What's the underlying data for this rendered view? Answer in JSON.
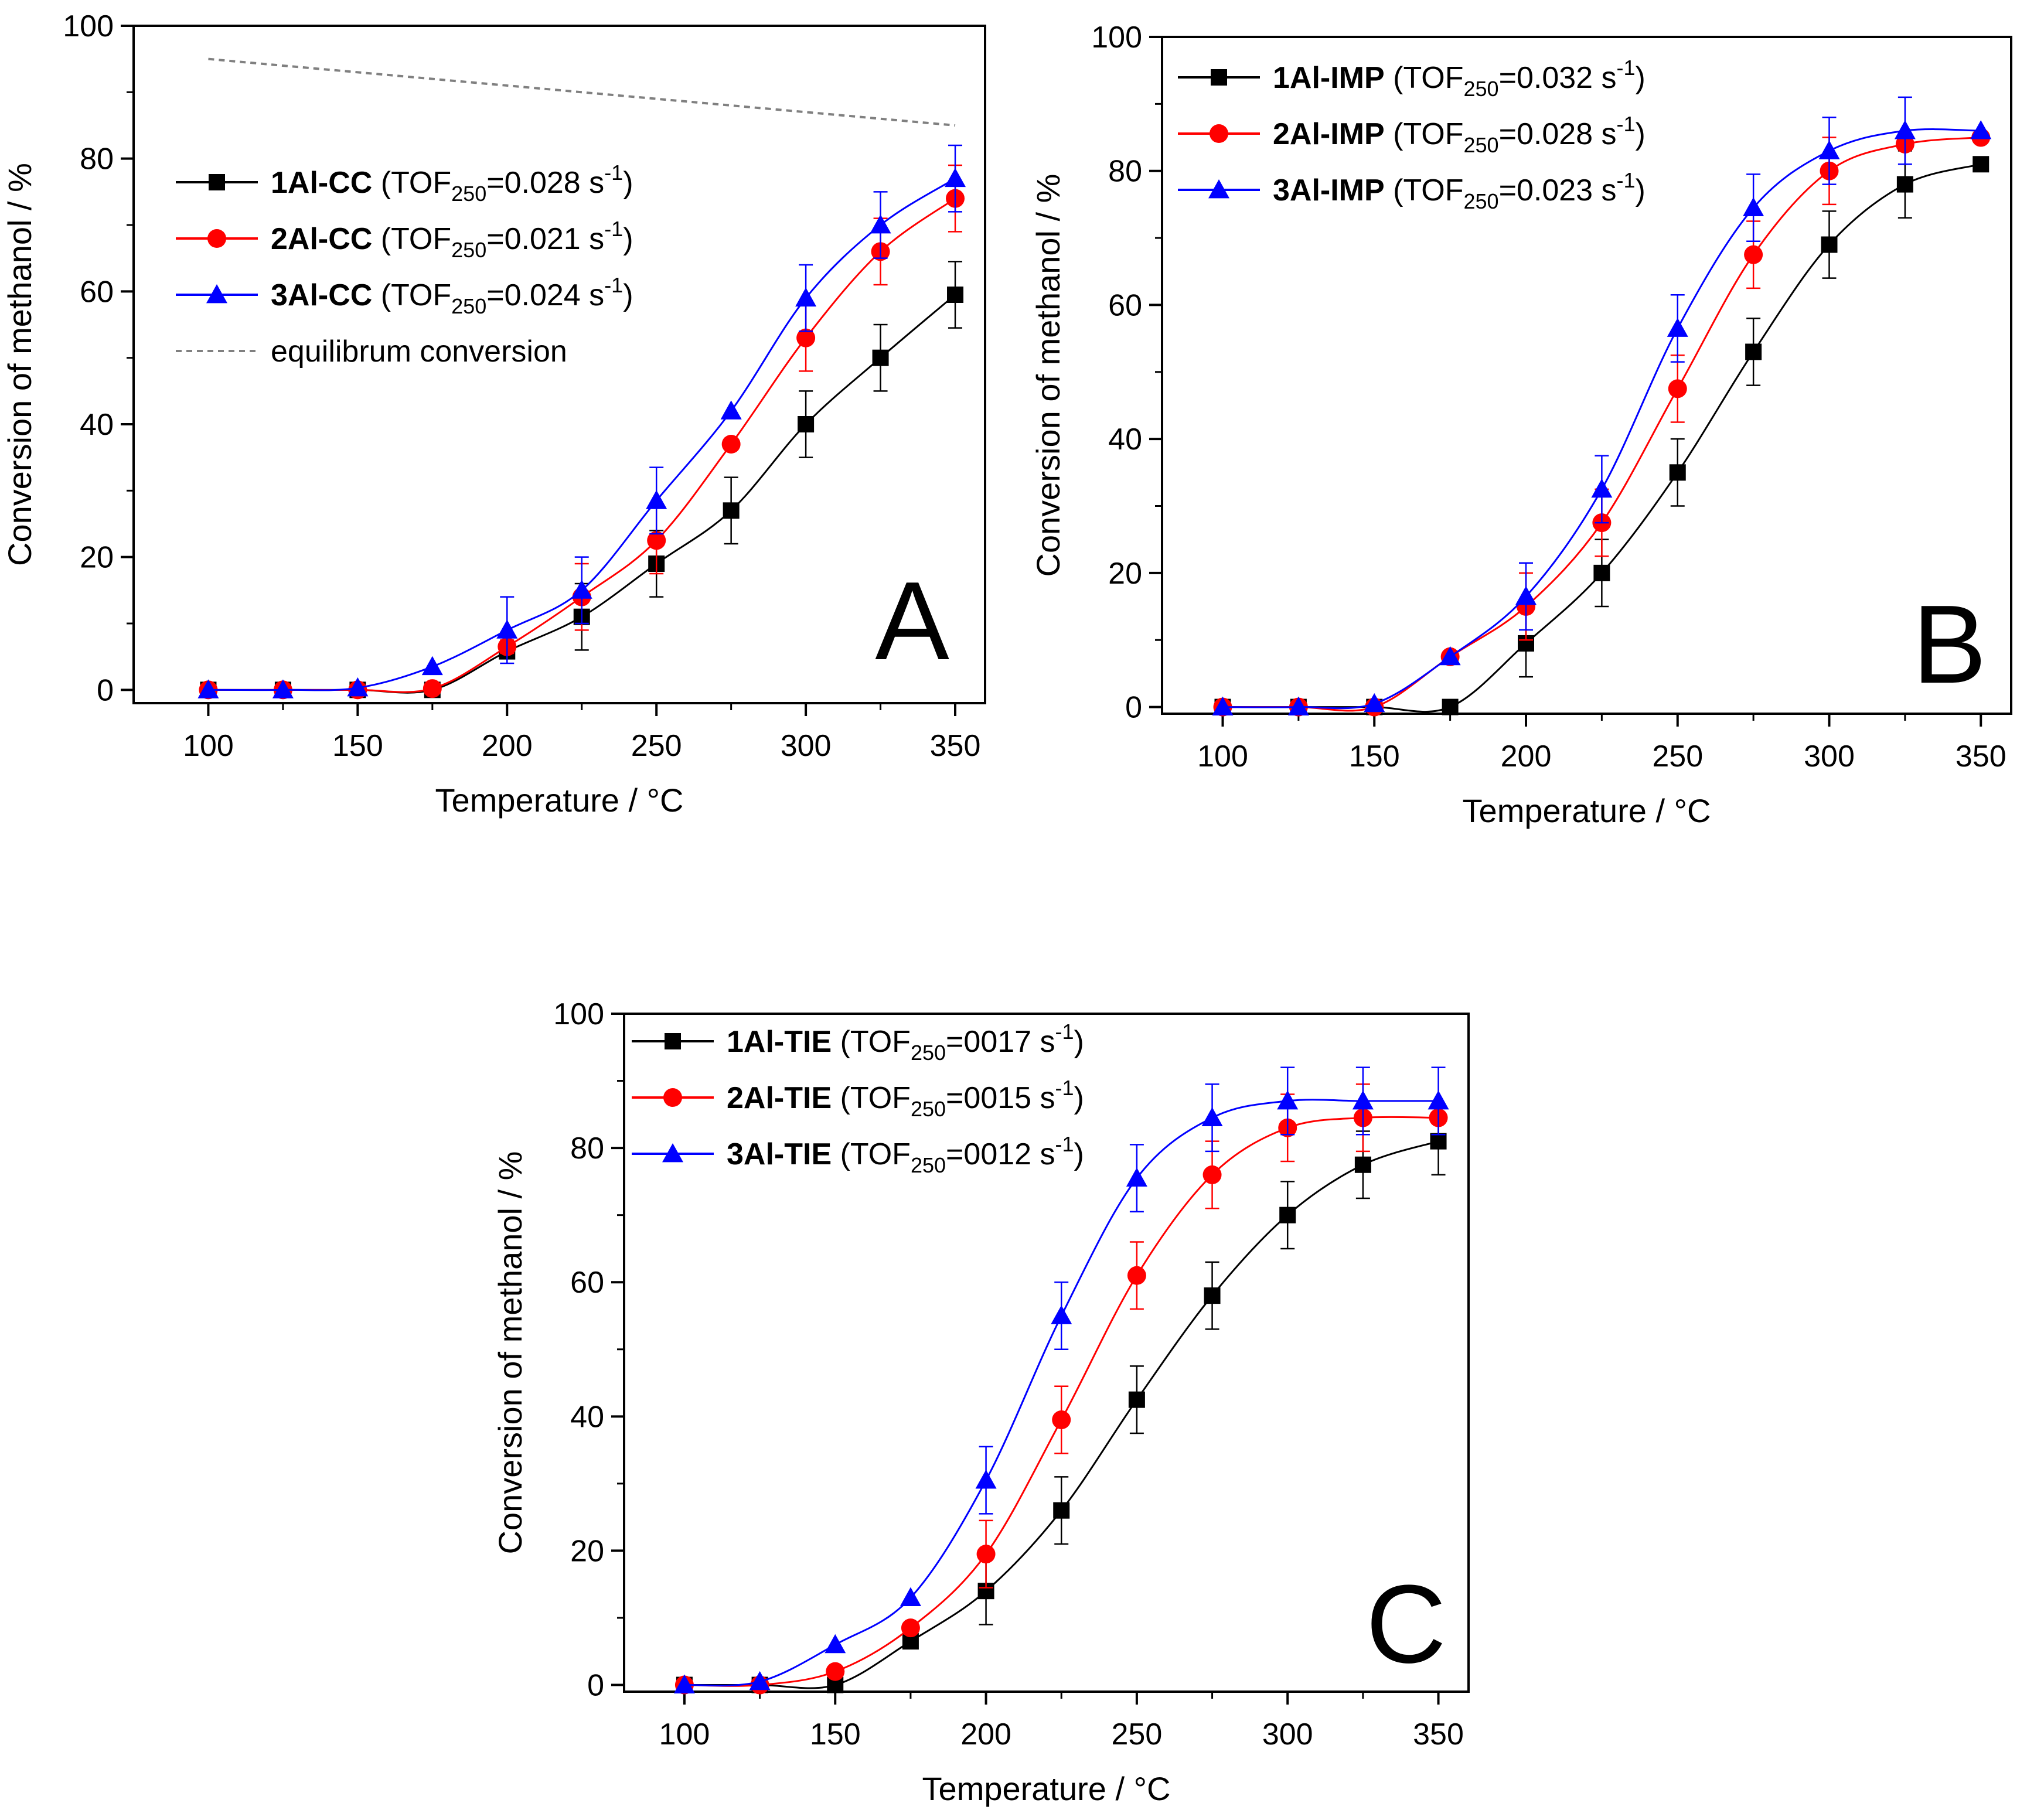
{
  "chart_data": [
    {
      "type": "line",
      "panel_label": "A",
      "xlabel": "Temperature / °C",
      "ylabel": "Conversion of methanol / %",
      "xlim": [
        75,
        360
      ],
      "ylim": [
        -2,
        100
      ],
      "xticks": [
        "100",
        "150",
        "200",
        "250",
        "300",
        "350"
      ],
      "yticks": [
        "0",
        "20",
        "40",
        "60",
        "80",
        "100"
      ],
      "legend_position": "top-left",
      "x": [
        100,
        125,
        150,
        175,
        200,
        225,
        250,
        275,
        300,
        325,
        350
      ],
      "series": [
        {
          "name": "1Al-CC",
          "tof": "0.028",
          "color": "#000000",
          "marker": "square",
          "values": [
            0,
            0,
            0,
            0,
            5.8,
            11,
            19,
            27,
            40,
            50,
            59.5
          ],
          "errors": [
            0,
            0,
            0,
            0,
            1,
            5,
            5,
            5,
            5,
            5,
            5
          ]
        },
        {
          "name": "2Al-CC",
          "tof": "0.021",
          "color": "#ff0000",
          "marker": "circle",
          "values": [
            0,
            0,
            0,
            0.2,
            6.5,
            14,
            22.5,
            37,
            53,
            66,
            74
          ],
          "errors": [
            0,
            0,
            0,
            0,
            1,
            5,
            5,
            0,
            5,
            5,
            5
          ]
        },
        {
          "name": "3Al-CC",
          "tof": "0.024",
          "color": "#0000ff",
          "marker": "triangle",
          "values": [
            0,
            0,
            0.3,
            3.5,
            9,
            15,
            28.5,
            42,
            59,
            70,
            77
          ],
          "errors": [
            0,
            0,
            0,
            0,
            5,
            5,
            5,
            0,
            5,
            5,
            5
          ]
        }
      ],
      "reference_line": {
        "name": "equilibrum conversion",
        "color": "#808080",
        "x": [
          100,
          350
        ],
        "values": [
          95,
          85
        ]
      }
    },
    {
      "type": "line",
      "panel_label": "B",
      "xlabel": "Temperature / °C",
      "ylabel": "Conversion of methanol / %",
      "xlim": [
        80,
        360
      ],
      "ylim": [
        -1,
        100
      ],
      "xticks": [
        "100",
        "150",
        "200",
        "250",
        "300",
        "350"
      ],
      "yticks": [
        "0",
        "20",
        "40",
        "60",
        "80",
        "100"
      ],
      "legend_position": "top-left",
      "x": [
        100,
        125,
        150,
        175,
        200,
        225,
        250,
        275,
        300,
        325,
        350
      ],
      "series": [
        {
          "name": "1Al-IMP",
          "tof": "0.032",
          "color": "#000000",
          "marker": "square",
          "values": [
            0,
            0,
            0,
            0,
            9.5,
            20,
            35,
            53,
            69,
            78,
            81
          ],
          "errors": [
            0,
            0,
            0,
            0,
            5,
            5,
            5,
            5,
            5,
            5,
            0
          ]
        },
        {
          "name": "2Al-IMP",
          "tof": "0.028",
          "color": "#ff0000",
          "marker": "circle",
          "values": [
            0,
            0,
            0,
            7.5,
            15,
            27.5,
            47.5,
            67.5,
            80,
            84,
            85
          ],
          "errors": [
            0,
            0,
            0,
            0,
            5,
            5,
            5,
            5,
            5,
            0,
            0
          ]
        },
        {
          "name": "3Al-IMP",
          "tof": "0.023",
          "color": "#0000ff",
          "marker": "triangle",
          "values": [
            0,
            0,
            0.5,
            7.5,
            16.5,
            32.5,
            56.5,
            74.5,
            83,
            86,
            86
          ],
          "errors": [
            0,
            0,
            0,
            0,
            5,
            5,
            5,
            5,
            5,
            5,
            0
          ]
        }
      ]
    },
    {
      "type": "line",
      "panel_label": "C",
      "xlabel": "Temperature / °C",
      "ylabel": "Conversion of methanol / %",
      "xlim": [
        80,
        360
      ],
      "ylim": [
        -1,
        100
      ],
      "xticks": [
        "100",
        "150",
        "200",
        "250",
        "300",
        "350"
      ],
      "yticks": [
        "0",
        "20",
        "40",
        "60",
        "80",
        "100"
      ],
      "legend_position": "top-left",
      "x": [
        100,
        125,
        150,
        175,
        200,
        225,
        250,
        275,
        300,
        325,
        350
      ],
      "series": [
        {
          "name": "1Al-TIE",
          "tof": "0017",
          "color": "#000000",
          "marker": "square",
          "values": [
            0,
            0,
            0,
            6.5,
            14,
            26,
            42.5,
            58,
            70,
            77.5,
            81
          ],
          "errors": [
            0,
            0,
            0,
            0,
            5,
            5,
            5,
            5,
            5,
            5,
            5
          ]
        },
        {
          "name": "2Al-TIE",
          "tof": "0015",
          "color": "#ff0000",
          "marker": "circle",
          "values": [
            0,
            0,
            2,
            8.5,
            19.5,
            39.5,
            61,
            76,
            83,
            84.5,
            84.5
          ],
          "errors": [
            0,
            0,
            0,
            0,
            5,
            5,
            5,
            5,
            5,
            5,
            0
          ]
        },
        {
          "name": "3Al-TIE",
          "tof": "0012",
          "color": "#0000ff",
          "marker": "triangle",
          "values": [
            0,
            0.5,
            6,
            13,
            30.5,
            55,
            75.5,
            84.5,
            87,
            87,
            87
          ],
          "errors": [
            0,
            0,
            0,
            0,
            5,
            5,
            5,
            5,
            5,
            5,
            5
          ]
        }
      ]
    }
  ]
}
